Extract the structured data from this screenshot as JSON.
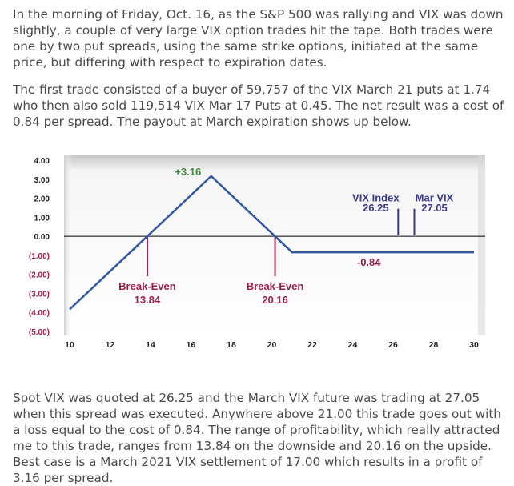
{
  "article": {
    "paragraph1": "In the morning of Friday, Oct. 16, as the S&P 500 was rallying and VIX was down slightly, a couple of very large VIX option trades hit the tape. Both trades were one by two put spreads, using the same strike options, initiated at the same price, but differing with respect to expiration dates.",
    "paragraph2": "The first trade consisted of a buyer of 59,757 of the VIX March 21 puts at 1.74 who then also sold 119,514 VIX Mar 17 Puts at 0.45. The net result was a cost of 0.84 per spread. The payout at March expiration shows up below.",
    "paragraph3": "Spot VIX was quoted at 26.25 and the March VIX future was trading at 27.05 when this spread was executed. Anywhere above 21.00 this trade goes out with a loss equal to the cost of 0.84. The range of profitability, which really attracted me to this trade, ranges from 13.84 on the downside and 20.16 on the upside. Best case is a March 2021 VIX settlement of 17.00 which results in a profit of 3.16 per spread."
  },
  "colors": {
    "line": "#2f58a0",
    "breakeven": "#9b1f4b",
    "negative_tick": "#9b1f4b",
    "peak_label": "#3c8a3c",
    "vix_marker": "#3a3a8c",
    "text": "#4a4a4a"
  },
  "chart_data": {
    "type": "line",
    "title": "",
    "xlabel": "",
    "ylabel": "",
    "xlim": [
      10,
      30
    ],
    "ylim": [
      -5,
      4
    ],
    "x_ticks": [
      10,
      12,
      14,
      16,
      18,
      20,
      22,
      24,
      26,
      28,
      30
    ],
    "y_ticks": [
      {
        "value": 4,
        "label": "4.00"
      },
      {
        "value": 3,
        "label": "3.00"
      },
      {
        "value": 2,
        "label": "2.00"
      },
      {
        "value": 1,
        "label": "1.00"
      },
      {
        "value": 0,
        "label": "0.00"
      },
      {
        "value": -1,
        "label": "(1.00)"
      },
      {
        "value": -2,
        "label": "(2.00)"
      },
      {
        "value": -3,
        "label": "(3.00)"
      },
      {
        "value": -4,
        "label": "(4.00)"
      },
      {
        "value": -5,
        "label": "(5.00)"
      }
    ],
    "series": [
      {
        "name": "Payout at March expiration",
        "points": [
          [
            10,
            -3.84
          ],
          [
            17,
            3.16
          ],
          [
            21,
            -0.84
          ],
          [
            30,
            -0.84
          ]
        ]
      }
    ],
    "annotations": {
      "peak": {
        "x": 17,
        "y": 3.16,
        "label": "+3.16"
      },
      "floor": {
        "x": 24.8,
        "y": -0.84,
        "label": "-0.84"
      },
      "breakeven_low": {
        "x": 13.84,
        "label_line1": "Break-Even",
        "label_line2": "13.84"
      },
      "breakeven_high": {
        "x": 20.16,
        "label_line1": "Break-Even",
        "label_line2": "20.16"
      },
      "vix_index": {
        "x": 26.25,
        "label_line1": "VIX Index",
        "label_line2": "26.25"
      },
      "mar_vix": {
        "x": 27.05,
        "label_line1": "Mar VIX",
        "label_line2": "27.05"
      }
    }
  }
}
